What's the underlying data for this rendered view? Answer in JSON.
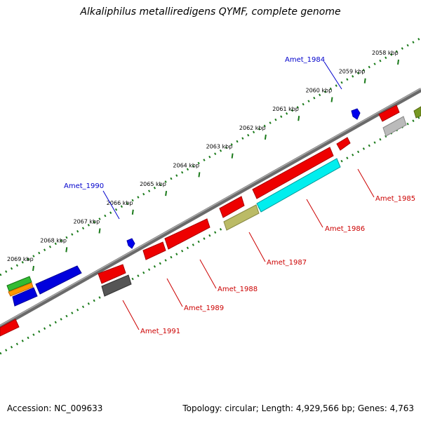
{
  "title": "Alkaliphilus metalliredigens QYMF, complete genome",
  "accession": "Accession: NC_009633",
  "summary": "Topology: circular; Length: 4,929,566 bp; Genes: 4,763",
  "scale_labels": [
    "2058 kbp",
    "2059 kbp",
    "2060 kbp",
    "2061 kbp",
    "2062 kbp",
    "2063 kbp",
    "2064 kbp",
    "2065 kbp",
    "2066 kbp",
    "2067 kbp",
    "2068 kbp",
    "2069 kbp"
  ],
  "gene_labels": {
    "top": [
      "Amet_1984",
      "Amet_1990"
    ],
    "bottom": [
      "Amet_1985",
      "Amet_1986",
      "Amet_1987",
      "Amet_1988",
      "Amet_1989",
      "Amet_1991"
    ]
  },
  "colors": {
    "top_label": "#0000cc",
    "bottom_label": "#cc0000",
    "backbone": "#888888",
    "tick": "#1a7a1a"
  }
}
